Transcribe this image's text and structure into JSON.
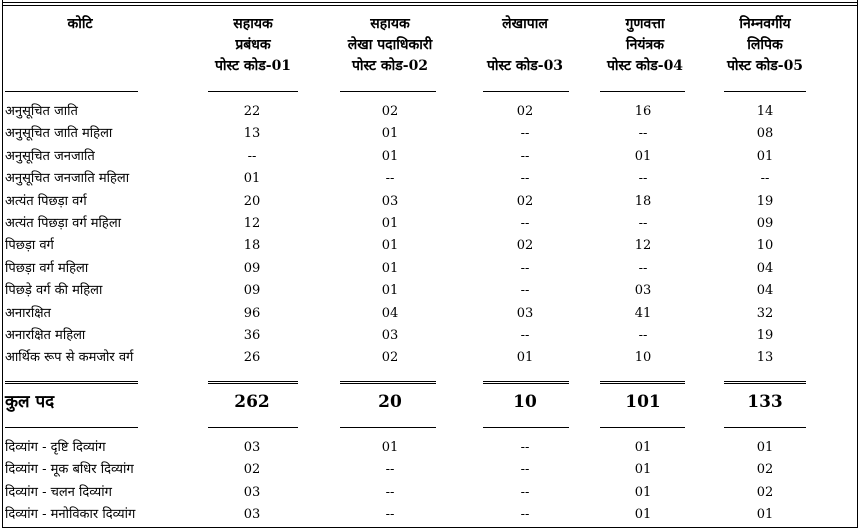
{
  "headers": {
    "category": "कोटि",
    "posts": [
      [
        "सहायक",
        "प्रबंधक",
        "पोस्ट कोड-01"
      ],
      [
        "सहायक",
        "लेखा पदाधिकारी",
        "पोस्ट कोड-02"
      ],
      [
        "लेखापाल",
        "",
        "पोस्ट कोड-03"
      ],
      [
        "गुणवत्ता",
        "नियंत्रक",
        "पोस्ट कोड-04"
      ],
      [
        "निम्नवर्गीय",
        "लिपिक",
        "पोस्ट कोड-05"
      ]
    ]
  },
  "rows": [
    {
      "label": "अनुसूचित जाति",
      "values": [
        "22",
        "02",
        "02",
        "16",
        "14"
      ]
    },
    {
      "label": "अनुसूचित जाति महिला",
      "values": [
        "13",
        "01",
        "--",
        "--",
        "08"
      ]
    },
    {
      "label": "अनुसूचित जनजाति",
      "values": [
        "--",
        "01",
        "--",
        "01",
        "01"
      ]
    },
    {
      "label": "अनुसूचित जनजाति महिला",
      "values": [
        "01",
        "--",
        "--",
        "--",
        "--"
      ]
    },
    {
      "label": "अत्यंत पिछड़ा वर्ग",
      "values": [
        "20",
        "03",
        "02",
        "18",
        "19"
      ]
    },
    {
      "label": "अत्यंत पिछड़ा वर्ग महिला",
      "values": [
        "12",
        "01",
        "--",
        "--",
        "09"
      ]
    },
    {
      "label": "पिछड़ा वर्ग",
      "values": [
        "18",
        "01",
        "02",
        "12",
        "10"
      ]
    },
    {
      "label": "पिछड़ा वर्ग महिला",
      "values": [
        "09",
        "01",
        "--",
        "--",
        "04"
      ]
    },
    {
      "label": "पिछड़े वर्ग की महिला",
      "values": [
        "09",
        "01",
        "--",
        "03",
        "04"
      ]
    },
    {
      "label": "अनारक्षित",
      "values": [
        "96",
        "04",
        "03",
        "41",
        "32"
      ]
    },
    {
      "label": "अनारक्षित महिला",
      "values": [
        "36",
        "03",
        "--",
        "--",
        "19"
      ]
    },
    {
      "label": "आर्थिक रूप से कमजोर वर्ग",
      "values": [
        "26",
        "02",
        "01",
        "10",
        "13"
      ]
    }
  ],
  "total": {
    "label": "कुल पद",
    "values": [
      "262",
      "20",
      "10",
      "101",
      "133"
    ]
  },
  "divyang_rows": [
    {
      "label": "दिव्यांग - दृष्टि दिव्यांग",
      "values": [
        "03",
        "01",
        "--",
        "01",
        "01"
      ]
    },
    {
      "label": "दिव्यांग - मूक बधिर दिव्यांग",
      "values": [
        "02",
        "--",
        "--",
        "01",
        "02"
      ]
    },
    {
      "label": "दिव्यांग - चलन दिव्यांग",
      "values": [
        "03",
        "--",
        "--",
        "01",
        "02"
      ]
    },
    {
      "label": "दिव्यांग - मनोविकार दिव्यांग",
      "values": [
        "03",
        "--",
        "--",
        "01",
        "01"
      ]
    }
  ]
}
